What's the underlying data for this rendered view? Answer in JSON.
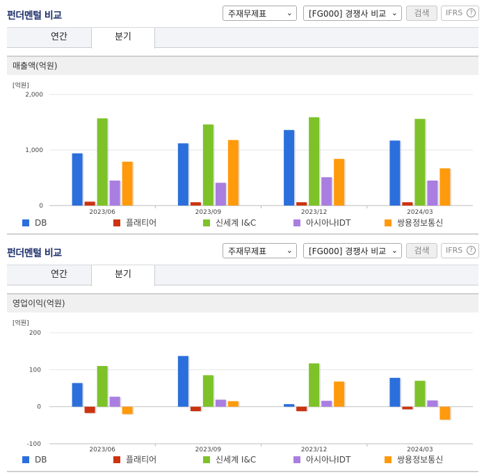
{
  "panels": [
    {
      "title": "펀더멘털 비교",
      "select1": "주재무제표",
      "select2": "[FG000] 경쟁사 비교",
      "search_button": "검색",
      "ifrs_label": "IFRS",
      "help_glyph": "?",
      "tabs": [
        "연간",
        "분기"
      ],
      "active_tab": 1,
      "metric_title": "매출액(억원)"
    },
    {
      "title": "펀더멘털 비교",
      "select1": "주재무제표",
      "select2": "[FG000] 경쟁사 비교",
      "search_button": "검색",
      "ifrs_label": "IFRS",
      "help_glyph": "?",
      "tabs": [
        "연간",
        "분기"
      ],
      "active_tab": 1,
      "metric_title": "영업이익(억원)"
    }
  ],
  "icons": {
    "dropdown": "chevron-down-icon",
    "help": "question-circle-icon"
  },
  "colors": {
    "DB": "#2b6fdc",
    "플래티어": "#cc3311",
    "신세계 I&C": "#7ec22a",
    "아시아나IDT": "#a97ee0",
    "쌍용정보통신": "#ff9a0c"
  },
  "chart_data": [
    {
      "type": "bar",
      "unit_label": "[억원]",
      "categories": [
        "2023/06",
        "2023/09",
        "2023/12",
        "2024/03"
      ],
      "yticks": [
        "2,000",
        "1,000",
        "0"
      ],
      "ylim": [
        0,
        2000
      ],
      "grid": true,
      "legend_position": "bottom",
      "series": [
        {
          "name": "DB",
          "values": [
            940,
            1120,
            1360,
            1170
          ]
        },
        {
          "name": "플래티어",
          "values": [
            70,
            60,
            60,
            60
          ]
        },
        {
          "name": "신세계 I&C",
          "values": [
            1570,
            1460,
            1590,
            1560
          ]
        },
        {
          "name": "아시아나IDT",
          "values": [
            450,
            410,
            510,
            450
          ]
        },
        {
          "name": "쌍용정보통신",
          "values": [
            790,
            1180,
            840,
            670
          ]
        }
      ]
    },
    {
      "type": "bar",
      "unit_label": "[억원]",
      "categories": [
        "2023/06",
        "2023/09",
        "2023/12",
        "2024/03"
      ],
      "yticks": [
        "200",
        "100",
        "0",
        "-100"
      ],
      "ylim": [
        -100,
        200
      ],
      "grid": true,
      "legend_position": "bottom",
      "series": [
        {
          "name": "DB",
          "values": [
            64,
            137,
            7,
            78
          ]
        },
        {
          "name": "플래티어",
          "values": [
            -17,
            -12,
            -12,
            -7
          ]
        },
        {
          "name": "신세계 I&C",
          "values": [
            110,
            85,
            117,
            70
          ]
        },
        {
          "name": "아시아나IDT",
          "values": [
            27,
            19,
            16,
            17
          ]
        },
        {
          "name": "쌍용정보통신",
          "values": [
            -20,
            15,
            68,
            -35
          ]
        }
      ]
    }
  ]
}
